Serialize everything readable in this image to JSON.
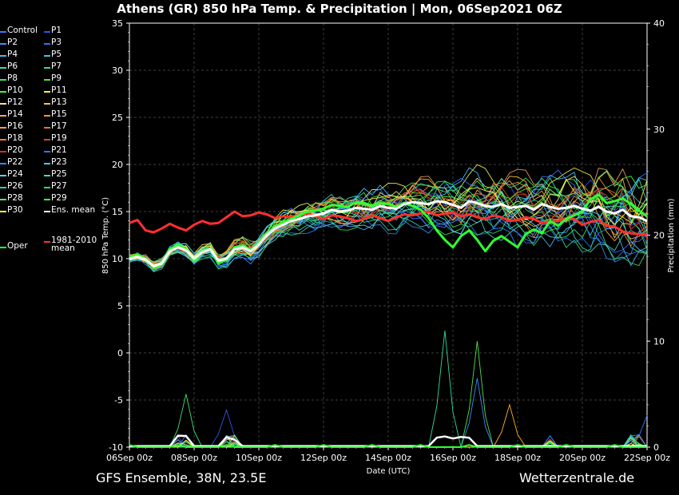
{
  "title": "Athens  (GR)  850 hPa Temp. & Precipitation | Mon, 06Sep2021 06Z",
  "footer": {
    "left": "GFS Ensemble, 38N, 23.5E",
    "right": "Wetterzentrale.de"
  },
  "legend": [
    {
      "label": "Control",
      "color": "#4f6bff"
    },
    {
      "label": "P1",
      "color": "#2f55e6"
    },
    {
      "label": "P2",
      "color": "#3a8cff"
    },
    {
      "label": "P3",
      "color": "#2b78f0"
    },
    {
      "label": "P4",
      "color": "#45b8ff"
    },
    {
      "label": "P5",
      "color": "#37c8e0"
    },
    {
      "label": "P6",
      "color": "#3dd6c0"
    },
    {
      "label": "P7",
      "color": "#2fdca0"
    },
    {
      "label": "P8",
      "color": "#3ee070"
    },
    {
      "label": "P9",
      "color": "#52e04a"
    },
    {
      "label": "P10",
      "color": "#3dff30"
    },
    {
      "label": "P11",
      "color": "#f5f53a"
    },
    {
      "label": "P12",
      "color": "#ffe680"
    },
    {
      "label": "P13",
      "color": "#ffc040"
    },
    {
      "label": "P14",
      "color": "#ffb030"
    },
    {
      "label": "P15",
      "color": "#ff9a20"
    },
    {
      "label": "P16",
      "color": "#e8a070"
    },
    {
      "label": "P17",
      "color": "#e0704a"
    },
    {
      "label": "P18",
      "color": "#ff7a3a"
    },
    {
      "label": "P19",
      "color": "#d04a28"
    },
    {
      "label": "P20",
      "color": "#d23030"
    },
    {
      "label": "P21",
      "color": "#3a70ff"
    },
    {
      "label": "P22",
      "color": "#2f8cff"
    },
    {
      "label": "P23",
      "color": "#40c8ff"
    },
    {
      "label": "P24",
      "color": "#5fd0e8"
    },
    {
      "label": "P25",
      "color": "#3ae0b0"
    },
    {
      "label": "P26",
      "color": "#2fd890"
    },
    {
      "label": "P27",
      "color": "#30e060"
    },
    {
      "label": "P28",
      "color": "#50e86a"
    },
    {
      "label": "P29",
      "color": "#42ff42"
    },
    {
      "label": "P30",
      "color": "#ffff40"
    },
    {
      "label": "Ens. mean",
      "color": "#ffffff"
    },
    {
      "label": "Oper",
      "color": "#30ff30"
    },
    {
      "label": "1981-2010\nmean",
      "color": "#ff3030"
    }
  ],
  "chart_data": {
    "type": "line",
    "xlabel": "Date (UTC)",
    "ylabel": "850 hPa Temp. (°C)",
    "y2label": "Precipitation (mm)",
    "ylim": [
      -10,
      35
    ],
    "y2lim": [
      0,
      40
    ],
    "yticks": [
      -10,
      -5,
      0,
      5,
      10,
      15,
      20,
      25,
      30,
      35
    ],
    "y2ticks": [
      0,
      10,
      20,
      30,
      40
    ],
    "x_start": "06Sep 00z",
    "x_end": "22Sep 00z",
    "x_step_hours": 6,
    "xticks": [
      "06Sep 00z",
      "08Sep 00z",
      "10Sep 00z",
      "12Sep 00z",
      "14Sep 00z",
      "16Sep 00z",
      "18Sep 00z",
      "20Sep 00z",
      "22Sep 00z"
    ],
    "grid": true,
    "legend_position": "left",
    "series": [
      {
        "name": "Ens. mean",
        "color": "#ffffff",
        "width": 3,
        "values": [
          10.0,
          10.2,
          9.9,
          9.2,
          9.5,
          10.8,
          11.2,
          10.9,
          10.0,
          10.7,
          11.0,
          9.8,
          10.0,
          11.0,
          11.2,
          10.8,
          11.5,
          12.5,
          13.2,
          13.6,
          14.0,
          14.2,
          14.5,
          14.6,
          14.8,
          15.2,
          15.0,
          15.1,
          15.4,
          15.3,
          15.2,
          15.6,
          15.4,
          15.3,
          15.8,
          16.0,
          15.9,
          15.8,
          16.1,
          16.0,
          15.7,
          15.4,
          16.1,
          15.9,
          15.6,
          15.5,
          15.8,
          15.4,
          15.5,
          15.6,
          15.2,
          15.8,
          15.5,
          15.3,
          15.4,
          15.6,
          15.3,
          15.1,
          15.5,
          15.0,
          14.8,
          15.2,
          14.5,
          14.4,
          14.0
        ]
      },
      {
        "name": "Oper",
        "color": "#30ff30",
        "width": 3,
        "values": [
          10.2,
          10.4,
          10.0,
          9.0,
          9.4,
          11.0,
          11.5,
          11.0,
          9.8,
          10.8,
          11.1,
          9.5,
          9.9,
          11.2,
          11.4,
          10.9,
          11.6,
          12.6,
          13.4,
          13.9,
          14.2,
          14.6,
          15.0,
          15.1,
          15.3,
          15.7,
          15.6,
          15.5,
          16.0,
          15.9,
          15.6,
          15.9,
          15.8,
          15.5,
          15.9,
          15.6,
          15.2,
          14.3,
          13.0,
          12.0,
          11.2,
          12.4,
          13.0,
          12.0,
          10.8,
          11.9,
          12.4,
          11.8,
          11.2,
          12.6,
          13.1,
          12.7,
          14.0,
          13.5,
          14.2,
          14.6,
          15.0,
          16.3,
          16.8,
          15.9,
          16.1,
          16.4,
          15.8,
          15.1,
          14.5
        ]
      },
      {
        "name": "1981-2010\nmean",
        "color": "#ff3030",
        "width": 3,
        "values": [
          13.8,
          14.1,
          13.0,
          12.8,
          13.2,
          13.7,
          13.3,
          13.0,
          13.6,
          14.0,
          13.7,
          13.8,
          14.4,
          15.0,
          14.5,
          14.6,
          14.9,
          14.7,
          14.3,
          14.5,
          14.4,
          14.6,
          14.8,
          14.5,
          14.2,
          14.6,
          14.5,
          14.3,
          14.0,
          14.2,
          14.6,
          14.3,
          14.0,
          14.4,
          14.7,
          14.6,
          14.8,
          15.0,
          14.6,
          14.8,
          14.9,
          14.5,
          14.7,
          14.4,
          14.2,
          14.6,
          14.4,
          14.0,
          14.1,
          14.4,
          14.2,
          13.8,
          13.9,
          14.0,
          14.3,
          14.2,
          13.6,
          13.9,
          14.1,
          13.5,
          13.4,
          12.9,
          12.7,
          12.6,
          12.5
        ]
      }
    ],
    "precip_peaks": [
      {
        "name": "P7",
        "time": "15Sep 18z",
        "mm": 11.0
      },
      {
        "name": "P9",
        "time": "16Sep 18z",
        "mm": 10.0
      },
      {
        "name": "P2",
        "time": "16Sep 18z",
        "mm": 6.5
      },
      {
        "name": "P14",
        "time": "17Sep 18z",
        "mm": 4.0
      },
      {
        "name": "P8",
        "time": "07Sep 18z",
        "mm": 5.0
      },
      {
        "name": "P1",
        "time": "09Sep 00z",
        "mm": 3.5
      },
      {
        "name": "P3",
        "time": "22Sep 00z",
        "mm": 3.0
      }
    ]
  }
}
